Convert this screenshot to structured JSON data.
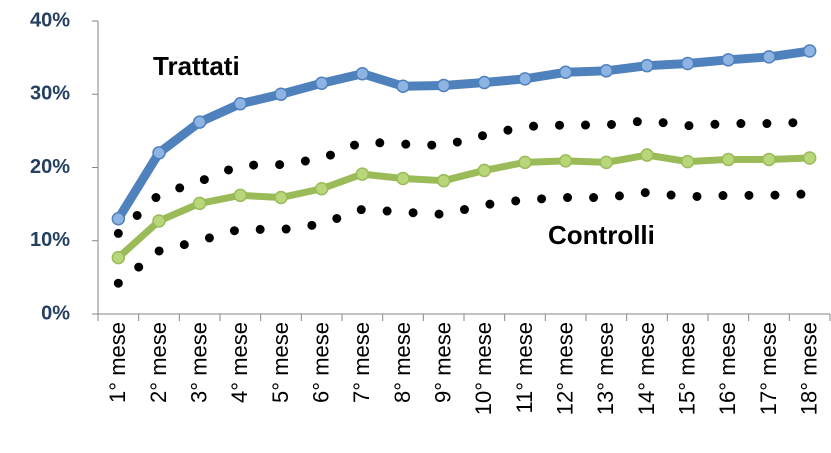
{
  "chart_data": {
    "type": "line",
    "categories": [
      "1° mese",
      "2° mese",
      "3° mese",
      "4° mese",
      "5° mese",
      "6° mese",
      "7° mese",
      "8° mese",
      "9° mese",
      "10° mese",
      "11° mese",
      "12° mese",
      "13° mese",
      "14° mese",
      "15° mese",
      "16° mese",
      "17° mese",
      "18° mese"
    ],
    "series": [
      {
        "name": "Trattati",
        "color": "#4f81bd",
        "marker_color": "#8eb4e3",
        "style": "solid",
        "values": [
          13,
          22,
          26.2,
          28.7,
          30,
          31.5,
          32.8,
          31.1,
          31.2,
          31.6,
          32.1,
          33,
          33.2,
          33.9,
          34.2,
          34.7,
          35.1,
          35.9
        ]
      },
      {
        "color": "#000000",
        "style": "dotted",
        "values": [
          11,
          16.3,
          18.1,
          20.3,
          20.4,
          21.2,
          23.5,
          23.2,
          23,
          24.4,
          25.6,
          25.8,
          25.8,
          26.4,
          25.7,
          26,
          26,
          26.2
        ]
      },
      {
        "name": "Controlli",
        "color": "#9bbb59",
        "marker_color": "#b7d77a",
        "style": "solid",
        "values": [
          7.7,
          12.7,
          15.1,
          16.2,
          15.9,
          17.1,
          19.1,
          18.5,
          18.2,
          19.6,
          20.7,
          20.9,
          20.7,
          21.7,
          20.8,
          21.1,
          21.1,
          21.3
        ]
      },
      {
        "color": "#000000",
        "style": "dotted",
        "values": [
          4.2,
          8.6,
          10,
          11.6,
          11.5,
          12.3,
          14.3,
          13.9,
          13.6,
          14.9,
          15.6,
          15.9,
          15.9,
          16.6,
          16,
          16.2,
          16.2,
          16.4
        ]
      }
    ],
    "ylim": [
      0,
      40
    ],
    "yticks": [
      {
        "value": 0,
        "label": "0%"
      },
      {
        "value": 10,
        "label": "10%"
      },
      {
        "value": 20,
        "label": "20%"
      },
      {
        "value": 30,
        "label": "30%"
      },
      {
        "value": 40,
        "label": "40%"
      }
    ],
    "grid": false
  }
}
